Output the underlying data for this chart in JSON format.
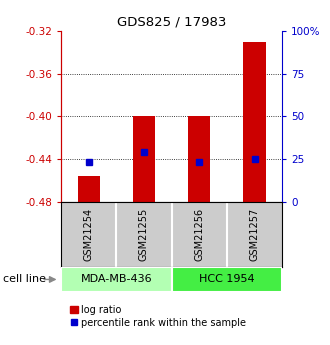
{
  "title": "GDS825 / 17983",
  "samples": [
    "GSM21254",
    "GSM21255",
    "GSM21256",
    "GSM21257"
  ],
  "log_ratio_values": [
    -0.456,
    -0.4,
    -0.4,
    -0.33
  ],
  "log_ratio_base": -0.48,
  "percentile_values": [
    -0.443,
    -0.433,
    -0.443,
    -0.44
  ],
  "ylim_left": [
    -0.48,
    -0.32
  ],
  "ylim_right": [
    0,
    100
  ],
  "yticks_left": [
    -0.48,
    -0.44,
    -0.4,
    -0.36,
    -0.32
  ],
  "yticks_right": [
    0,
    25,
    50,
    75,
    100
  ],
  "cell_groups": [
    {
      "label": "MDA-MB-436",
      "samples": [
        0,
        1
      ],
      "color": "#b3ffb3"
    },
    {
      "label": "HCC 1954",
      "samples": [
        2,
        3
      ],
      "color": "#44ee44"
    }
  ],
  "bar_color": "#cc0000",
  "blue_color": "#0000cc",
  "bar_width": 0.4,
  "background_color": "#ffffff",
  "left_axis_color": "#cc0000",
  "right_axis_color": "#0000cc",
  "sample_label_area_color": "#cccccc",
  "cell_line_label": "cell line",
  "legend_red_label": "log ratio",
  "legend_blue_label": "percentile rank within the sample",
  "grid_yticks": [
    -0.44,
    -0.4,
    -0.36
  ]
}
